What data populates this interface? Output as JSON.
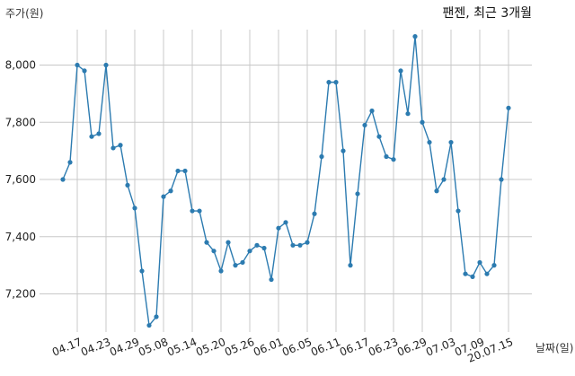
{
  "chart_data": {
    "type": "line",
    "title": "팬젠, 최근 3개월",
    "xlabel": "날짜(일)",
    "ylabel": "주가(원)",
    "grid": true,
    "ylim": [
      7040,
      8140
    ],
    "yticks": [
      7200,
      7400,
      7600,
      7800,
      8000
    ],
    "ytick_labels": [
      "7,200",
      "7,400",
      "7,600",
      "7,800",
      "8,000"
    ],
    "x_tick_labels": [
      "04.17",
      "04.23",
      "04.29",
      "05.08",
      "05.14",
      "05.20",
      "05.26",
      "06.01",
      "06.05",
      "06.11",
      "06.17",
      "06.23",
      "06.29",
      "07.03",
      "07.09",
      "20.07.15"
    ],
    "x_tick_index": [
      2,
      6,
      10,
      14,
      18,
      22,
      26,
      30,
      34,
      38,
      42,
      46,
      50,
      54,
      58,
      62
    ],
    "series": [
      {
        "values": [
          7600,
          7660,
          8000,
          7980,
          7750,
          7760,
          8000,
          7710,
          7720,
          7580,
          7500,
          7280,
          7090,
          7120,
          7540,
          7560,
          7630,
          7630,
          7490,
          7490,
          7380,
          7350,
          7280,
          7380,
          7300,
          7310,
          7350,
          7370,
          7360,
          7250,
          7430,
          7450,
          7370,
          7370,
          7380,
          7480,
          7680,
          7940,
          7940,
          7700,
          7300,
          7550,
          7790,
          7840,
          7750,
          7680,
          7670,
          7980,
          7830,
          8100,
          7800,
          7730,
          7560,
          7600,
          7730,
          7490,
          7270,
          7260,
          7310,
          7270,
          7300,
          7600,
          7850
        ]
      }
    ]
  }
}
